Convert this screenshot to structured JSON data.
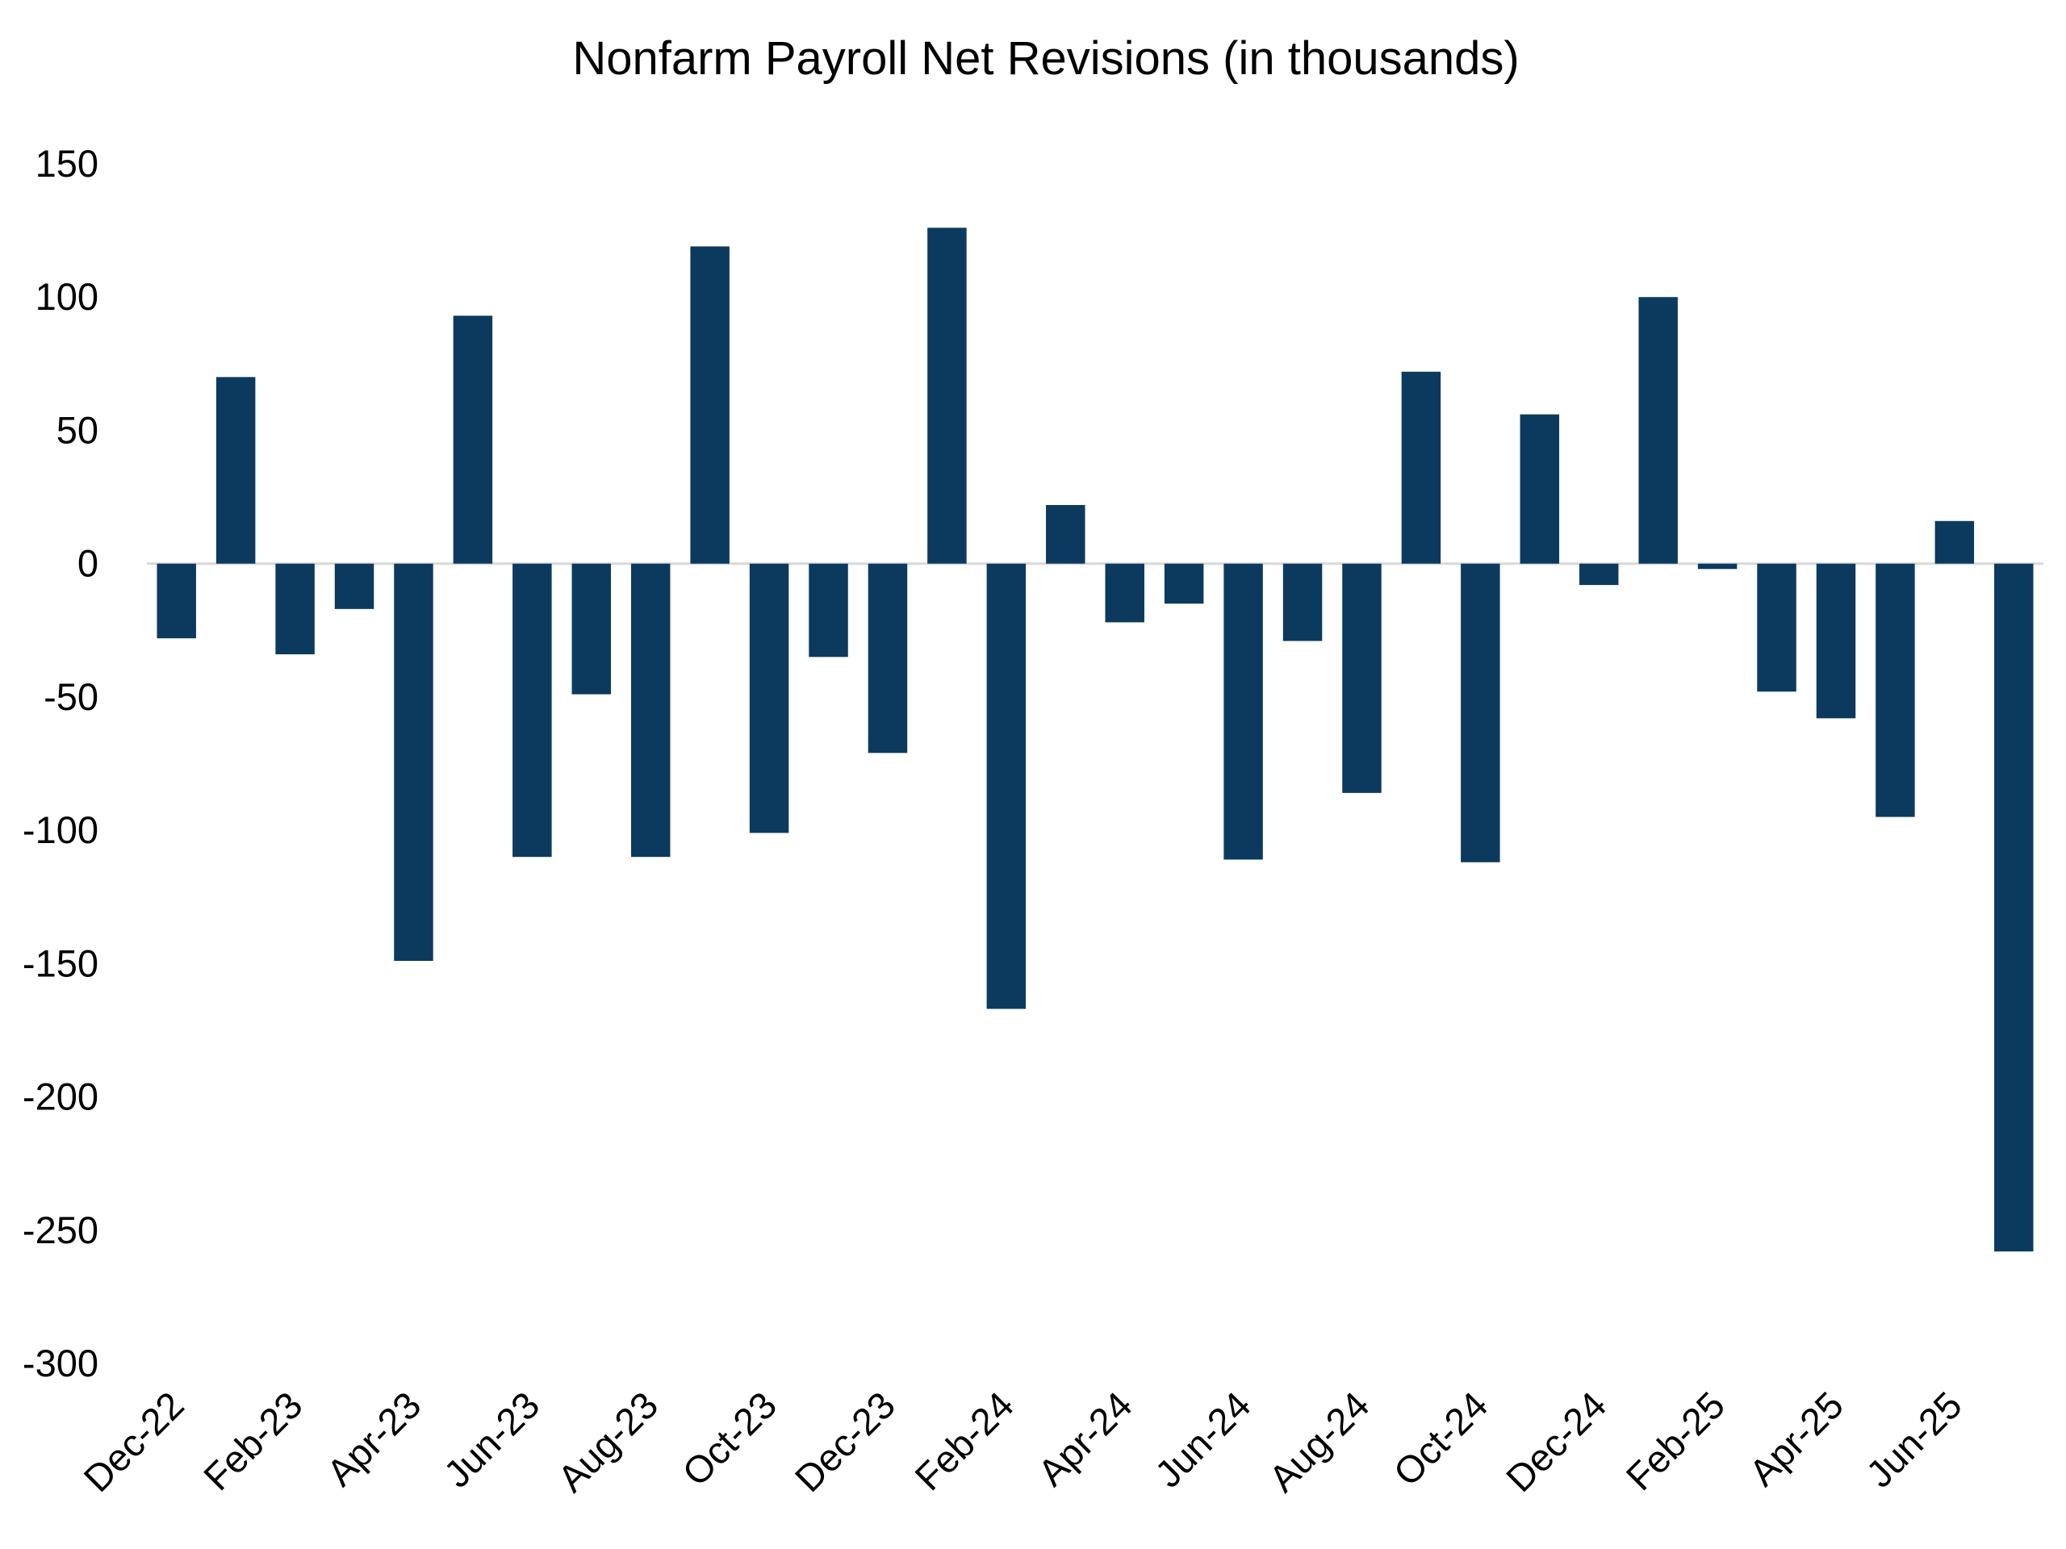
{
  "chart_data": {
    "type": "bar",
    "title": "Nonfarm Payroll Net Revisions (in thousands)",
    "xlabel": "",
    "ylabel": "",
    "ylim": [
      -300,
      150
    ],
    "yticks": [
      150,
      100,
      50,
      0,
      -50,
      -100,
      -150,
      -200,
      -250,
      -300
    ],
    "ytick_labels": [
      "150",
      "100",
      "50",
      "0",
      "-50",
      "-100",
      "-150",
      "-200",
      "-250",
      "-300"
    ],
    "grid": false,
    "legend": "none",
    "bar_color": "#0b3a5e",
    "zero_line_color": "#d9d9d9",
    "categories": [
      "Dec-22",
      "Jan-23",
      "Feb-23",
      "Mar-23",
      "Apr-23",
      "May-23",
      "Jun-23",
      "Jul-23",
      "Aug-23",
      "Sep-23",
      "Oct-23",
      "Nov-23",
      "Dec-23",
      "Jan-24",
      "Feb-24",
      "Mar-24",
      "Apr-24",
      "May-24",
      "Jun-24",
      "Jul-24",
      "Aug-24",
      "Sep-24",
      "Oct-24",
      "Nov-24",
      "Dec-24",
      "Jan-25",
      "Feb-25",
      "Mar-25",
      "Apr-25",
      "May-25",
      "Jun-25",
      "Jul-25"
    ],
    "x_tick_labels": [
      "Dec-22",
      "Feb-23",
      "Apr-23",
      "Jun-23",
      "Aug-23",
      "Oct-23",
      "Dec-23",
      "Feb-24",
      "Apr-24",
      "Jun-24",
      "Aug-24",
      "Oct-24",
      "Dec-24",
      "Feb-25",
      "Apr-25",
      "Jun-25"
    ],
    "values": [
      -28,
      70,
      -34,
      -17,
      -149,
      93,
      -110,
      -49,
      -110,
      119,
      -101,
      -35,
      -71,
      126,
      -167,
      22,
      -22,
      -15,
      -111,
      -29,
      -86,
      72,
      -112,
      56,
      -8,
      100,
      -2,
      -48,
      -58,
      -95,
      16,
      -258
    ]
  }
}
